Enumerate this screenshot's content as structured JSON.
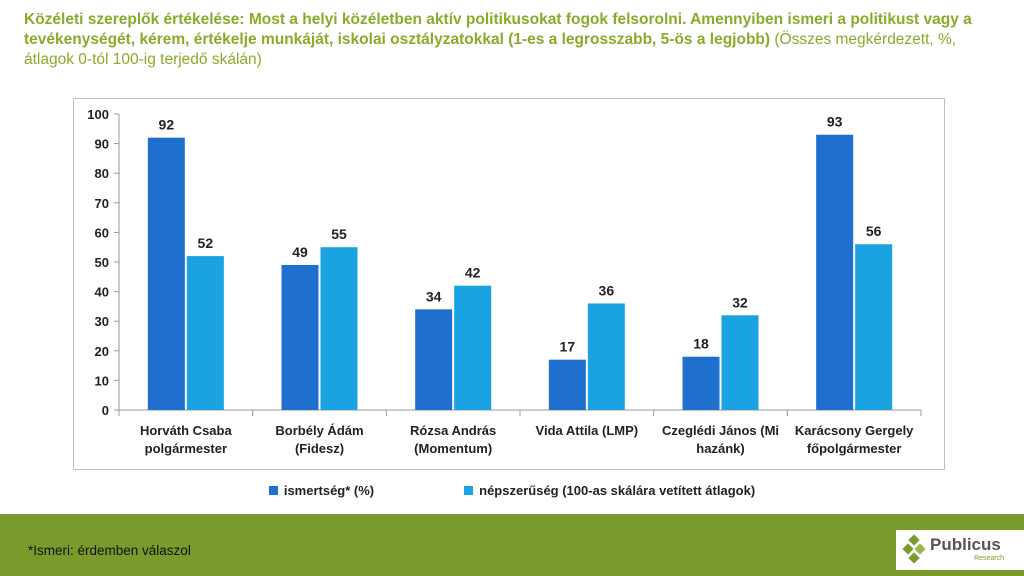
{
  "title": {
    "bold": "Közéleti szereplők értékelése: Most a helyi közéletben aktív politikusokat fogok felsorolni. Amennyiben ismeri a politikust vagy a tevékenységét, kérem, értékelje munkáját, iskolai osztályzatokkal  (1-es a legrosszabb, 5-ös a legjobb)",
    "normal": "(Összes megkérdezett, %, átlagok 0-tól 100-ig terjedő skálán)"
  },
  "chart_data": {
    "type": "bar",
    "categories": [
      [
        "Horváth Csaba",
        "polgármester"
      ],
      [
        "Borbély Ádám",
        "(Fidesz)"
      ],
      [
        "Rózsa András",
        "(Momentum)"
      ],
      [
        "Vida Attila (LMP)"
      ],
      [
        "Czeglédi János (Mi",
        "hazánk)"
      ],
      [
        "Karácsony Gergely",
        "főpolgármester"
      ]
    ],
    "series": [
      {
        "name": "ismertség* (%)",
        "color": "#1f6fcf",
        "values": [
          92,
          49,
          34,
          17,
          18,
          93
        ]
      },
      {
        "name": "népszerűség (100-as skálára vetített átlagok)",
        "color": "#1aa3e0",
        "values": [
          52,
          55,
          42,
          36,
          32,
          56
        ]
      }
    ],
    "ylim": [
      0,
      100
    ],
    "yticks": [
      0,
      10,
      20,
      30,
      40,
      50,
      60,
      70,
      80,
      90,
      100
    ],
    "grid": false,
    "legend_position": "bottom"
  },
  "footer": {
    "note": "*Ismeri: érdemben válaszol",
    "logo_name": "Publicus",
    "logo_sub": "Research"
  }
}
